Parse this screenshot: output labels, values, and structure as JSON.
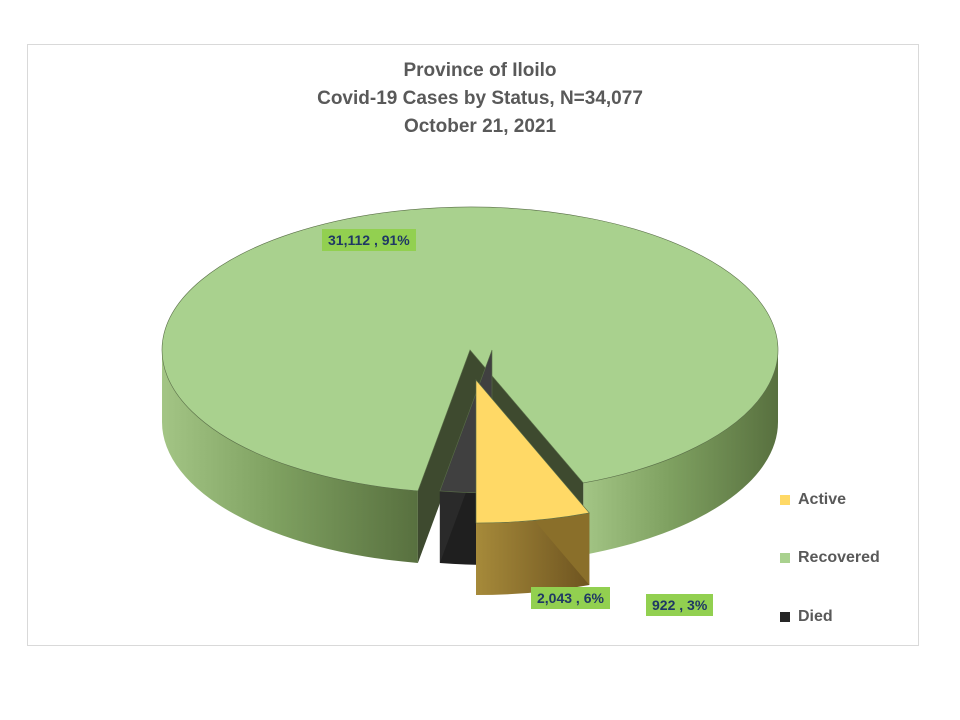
{
  "chart_data": {
    "type": "pie",
    "title_lines": [
      "Province of Iloilo",
      "Covid-19 Cases by Status, N=34,077",
      "October 21, 2021"
    ],
    "total": 34077,
    "slices": [
      {
        "name": "Active",
        "value": 2043,
        "percent": 6,
        "label": "2,043 , 6%",
        "color": "#ffd966"
      },
      {
        "name": "Recovered",
        "value": 31112,
        "percent": 91,
        "label": "31,112 , 91%",
        "color": "#a9d18e"
      },
      {
        "name": "Died",
        "value": 922,
        "percent": 3,
        "label": "922 , 3%",
        "color": "#3b3b3b"
      }
    ],
    "legend": [
      {
        "label": "Active",
        "color": "#ffd966"
      },
      {
        "label": "Recovered",
        "color": "#a9d18e"
      },
      {
        "label": "Died",
        "color": "#262626"
      }
    ],
    "legend_position": "right",
    "style": "3d-exploded"
  }
}
